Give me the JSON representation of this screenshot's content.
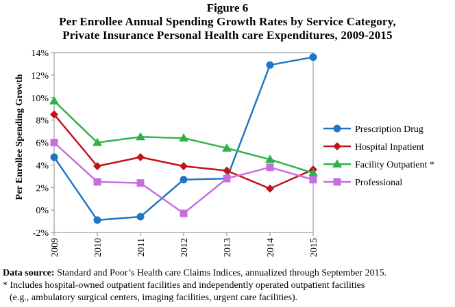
{
  "figure_label": "Figure 6",
  "title_line1": "Per Enrollee Annual Spending Growth Rates by Service Category,",
  "title_line2": "Private Insurance Personal Health care Expenditures, 2009-2015",
  "source": {
    "label": "Data source:",
    "text": " Standard and Poor’s Health care Claims Indices, annualized through September 2015.",
    "note_line1": "* Includes hospital-owned outpatient facilities and independently operated outpatient facilities",
    "note_line2": "(e.g., ambulatory surgical centers, imaging facilities, urgent care facilities)."
  },
  "chart_data": {
    "type": "line",
    "title": "Per Enrollee Annual Spending Growth Rates by Service Category, Private Insurance Personal Health care Expenditures, 2009-2015",
    "xlabel": "",
    "ylabel": "Per Enrollee Spending Growth",
    "x": [
      "2009",
      "2010",
      "2011",
      "2012",
      "2013",
      "2014",
      "2015"
    ],
    "ylim": [
      -2,
      14
    ],
    "yticks": [
      "-2%",
      "0%",
      "2%",
      "4%",
      "6%",
      "8%",
      "10%",
      "12%",
      "14%"
    ],
    "grid": false,
    "legend_position": "right",
    "series": [
      {
        "name": "Prescription Drug",
        "color": "#1F77C4",
        "marker": "circle",
        "values": [
          4.7,
          -0.9,
          -0.6,
          2.7,
          2.8,
          12.9,
          13.6
        ]
      },
      {
        "name": "Hospital Inpatient",
        "color": "#C0141C",
        "marker": "diamond",
        "values": [
          8.5,
          3.9,
          4.7,
          3.9,
          3.5,
          1.9,
          3.6
        ]
      },
      {
        "name": "Facility Outpatient *",
        "color": "#2FB24A",
        "marker": "triangle",
        "values": [
          9.7,
          6.0,
          6.5,
          6.4,
          5.5,
          4.5,
          3.3
        ]
      },
      {
        "name": "Professional",
        "color": "#C86DE0",
        "marker": "square",
        "values": [
          6.0,
          2.5,
          2.4,
          -0.3,
          2.8,
          3.8,
          2.7
        ]
      }
    ]
  }
}
